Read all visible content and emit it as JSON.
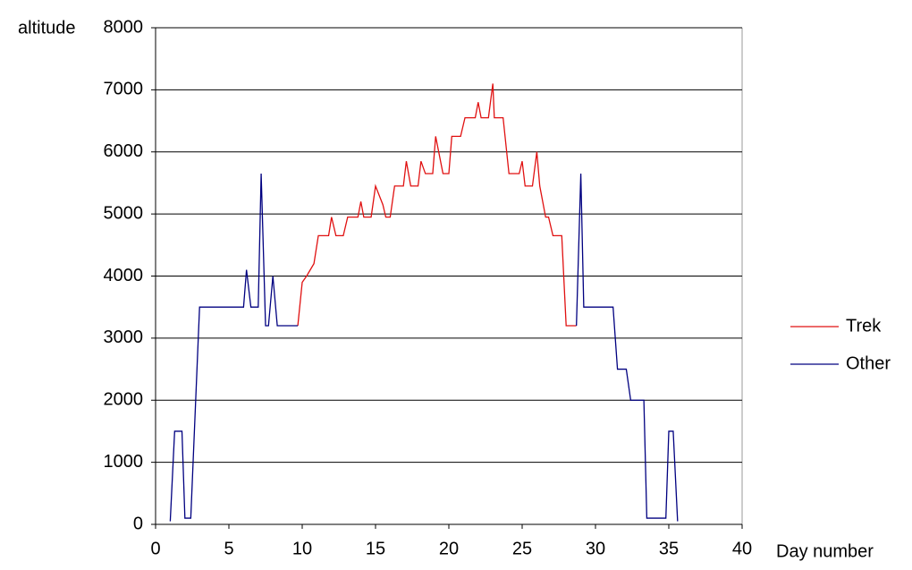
{
  "chart_data": {
    "type": "line",
    "y_label": "altitude",
    "x_label": "Day number",
    "x": [
      1.0,
      1.3,
      1.8,
      2.0,
      2.4,
      3.0,
      6.0,
      6.2,
      6.5,
      7.0,
      7.2,
      7.5,
      7.7,
      8.0,
      8.3,
      9.7,
      10.0,
      10.3,
      10.8,
      11.1,
      11.8,
      12.0,
      12.3,
      12.8,
      13.1,
      13.8,
      14.0,
      14.2,
      14.7,
      15.0,
      15.5,
      15.7,
      16.0,
      16.3,
      16.9,
      17.1,
      17.4,
      17.9,
      18.1,
      18.4,
      18.9,
      19.1,
      19.6,
      20.0,
      20.2,
      20.8,
      21.1,
      21.8,
      22.0,
      22.2,
      22.7,
      23.0,
      23.1,
      23.7,
      24.1,
      24.8,
      25.0,
      25.2,
      25.7,
      26.0,
      26.2,
      26.6,
      26.8,
      27.1,
      27.7,
      28.0,
      28.7,
      29.0,
      29.2,
      31.2,
      31.5,
      32.1,
      32.4,
      33.3,
      33.5,
      34.8,
      35.0,
      35.3,
      35.6
    ],
    "series": [
      {
        "name": "Trek",
        "color": "#e01010",
        "values": [
          null,
          null,
          null,
          null,
          null,
          null,
          null,
          null,
          null,
          null,
          null,
          null,
          null,
          null,
          null,
          3200,
          3900,
          4000,
          4200,
          4650,
          4650,
          4950,
          4650,
          4650,
          4950,
          4950,
          5200,
          4950,
          4950,
          5450,
          5150,
          4950,
          4950,
          5450,
          5450,
          5850,
          5450,
          5450,
          5850,
          5650,
          5650,
          6250,
          5650,
          5650,
          6250,
          6250,
          6550,
          6550,
          6800,
          6550,
          6550,
          7100,
          6550,
          6550,
          5650,
          5650,
          5850,
          5450,
          5450,
          6000,
          5450,
          4950,
          4950,
          4650,
          4650,
          3200,
          3200,
          null,
          null,
          null,
          null,
          null,
          null,
          null,
          null,
          null,
          null,
          null,
          null
        ]
      },
      {
        "name": "Other",
        "color": "#000080",
        "values": [
          50,
          1500,
          1500,
          100,
          100,
          3500,
          3500,
          4100,
          3500,
          3500,
          5650,
          3200,
          3200,
          4000,
          3200,
          3200,
          null,
          null,
          null,
          null,
          null,
          null,
          null,
          null,
          null,
          null,
          null,
          null,
          null,
          null,
          null,
          null,
          null,
          null,
          null,
          null,
          null,
          null,
          null,
          null,
          null,
          null,
          null,
          null,
          null,
          null,
          null,
          null,
          null,
          null,
          null,
          null,
          null,
          null,
          null,
          null,
          null,
          null,
          null,
          null,
          null,
          null,
          null,
          null,
          null,
          null,
          3200,
          5650,
          3500,
          3500,
          2500,
          2500,
          2000,
          2000,
          100,
          100,
          1500,
          1500,
          50
        ]
      }
    ],
    "xlim": [
      0,
      40
    ],
    "xticks": [
      0,
      5,
      10,
      15,
      20,
      25,
      30,
      35,
      40
    ],
    "ylim": [
      0,
      8000
    ],
    "yticks": [
      0,
      1000,
      2000,
      3000,
      4000,
      5000,
      6000,
      7000,
      8000
    ],
    "grid": true,
    "legend": "right"
  }
}
